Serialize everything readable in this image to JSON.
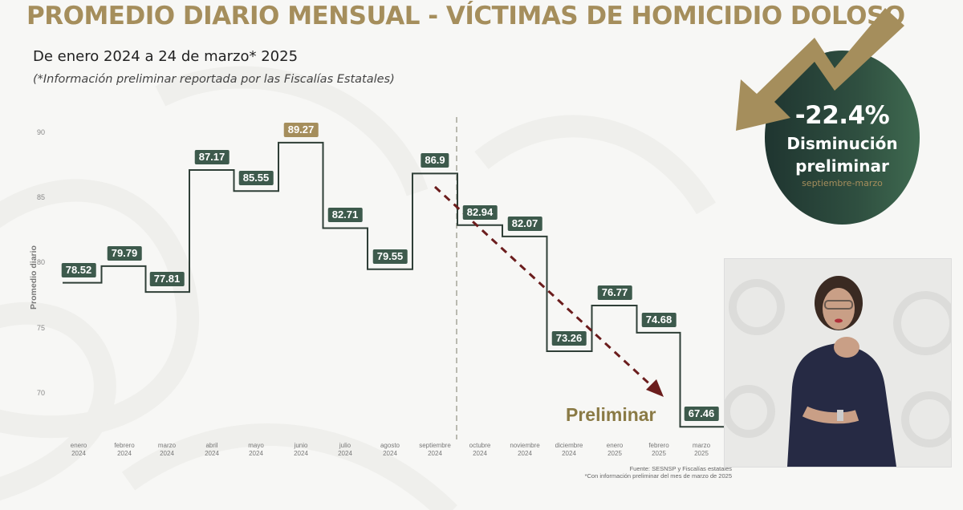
{
  "header": {
    "title": "PROMEDIO DIARIO MENSUAL - VÍCTIMAS DE HOMICIDIO DOLOSO",
    "subtitle": "De enero 2024 a 24 de marzo* 2025",
    "note": "(*Información preliminar reportada por las Fiscalías Estatales)"
  },
  "badge": {
    "percent": "-22.4%",
    "line1": "Disminución",
    "line2": "preliminar",
    "range": "septiembre-marzo",
    "icon": "down-trend-arrow-icon"
  },
  "annotation": {
    "preliminar": "Preliminar"
  },
  "footer": {
    "source": "Fuente: SESNSP y Fiscalías estatales",
    "note": "*Con información preliminar del mes de marzo de 2025"
  },
  "video": {
    "description": "sign-language-interpreter"
  },
  "colors": {
    "gold": "#a58e5c",
    "dark_green": "#3d5a4c",
    "trend_arrow": "#6b1d1d",
    "line": "#2f3f37"
  },
  "chart_data": {
    "type": "line",
    "style": "step",
    "title": "PROMEDIO DIARIO MENSUAL - VÍCTIMAS DE HOMICIDIO DOLOSO",
    "subtitle": "De enero 2024 a 24 de marzo* 2025",
    "xlabel": "",
    "ylabel": "Promedio diario",
    "ylim": [
      67,
      91
    ],
    "yticks": [
      70,
      75,
      80,
      85,
      90
    ],
    "grid": false,
    "categories": [
      "enero 2024",
      "febrero 2024",
      "marzo 2024",
      "abril 2024",
      "mayo 2024",
      "junio 2024",
      "julio 2024",
      "agosto 2024",
      "septiembre 2024",
      "octubre 2024",
      "noviembre 2024",
      "diciembre 2024",
      "enero 2025",
      "febrero 2025",
      "marzo 2025"
    ],
    "x_month": [
      "enero",
      "febrero",
      "marzo",
      "abril",
      "mayo",
      "junio",
      "julio",
      "agosto",
      "septiembre",
      "octubre",
      "noviembre",
      "diciembre",
      "enero",
      "febrero",
      "marzo"
    ],
    "x_year": [
      "2024",
      "2024",
      "2024",
      "2024",
      "2024",
      "2024",
      "2024",
      "2024",
      "2024",
      "2024",
      "2024",
      "2024",
      "2025",
      "2025",
      "2025"
    ],
    "series": [
      {
        "name": "Promedio diario",
        "values": [
          78.52,
          79.79,
          77.81,
          87.17,
          85.55,
          89.27,
          82.71,
          79.55,
          86.9,
          82.94,
          82.07,
          73.26,
          76.77,
          74.68,
          67.46
        ],
        "labels": [
          "78.52",
          "79.79",
          "77.81",
          "87.17",
          "85.55",
          "89.27",
          "82.71",
          "79.55",
          "86.9",
          "82.94",
          "82.07",
          "73.26",
          "76.77",
          "74.68",
          "67.46"
        ]
      }
    ],
    "highlight": {
      "category": "junio 2024",
      "value": 89.27,
      "color": "#a58e5c"
    },
    "annotations": [
      {
        "type": "vertical-dashed-line",
        "between": [
          "septiembre 2024",
          "octubre 2024"
        ]
      },
      {
        "type": "dashed-trend-arrow",
        "from": "septiembre 2024",
        "to": "febrero 2025",
        "direction": "down"
      },
      {
        "type": "text",
        "text": "Preliminar"
      },
      {
        "type": "callout",
        "text": "-22.4% Disminución preliminar septiembre-marzo"
      }
    ]
  }
}
